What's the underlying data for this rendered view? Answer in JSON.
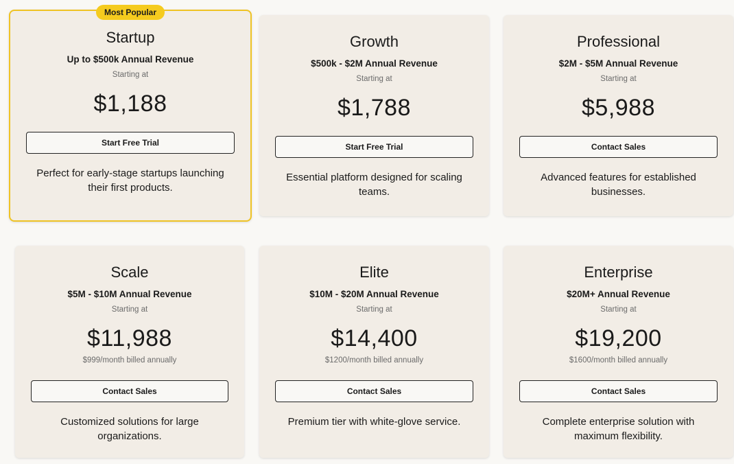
{
  "plans": [
    {
      "badge": "Most Popular",
      "name": "Startup",
      "revenue": "Up to $500k Annual Revenue",
      "starting": "Starting at",
      "price": "$1,188",
      "button": "Start Free Trial",
      "description": [
        "Perfect for early-stage startups launching",
        "their first products."
      ]
    },
    {
      "name": "Growth",
      "revenue": "$500k - $2M Annual Revenue",
      "starting": "Starting at",
      "price": "$1,788",
      "button": "Start Free Trial",
      "description": [
        "Essential platform designed for scaling",
        "teams."
      ]
    },
    {
      "name": "Professional",
      "revenue": "$2M - $5M Annual Revenue",
      "starting": "Starting at",
      "price": "$5,988",
      "button": "Contact Sales",
      "description": [
        "Advanced features for established",
        "businesses."
      ]
    },
    {
      "name": "Scale",
      "revenue": "$5M - $10M Annual Revenue",
      "starting": "Starting at",
      "price": "$11,988",
      "monthly": "$999/month billed annually",
      "button": "Contact Sales",
      "description": [
        "Customized solutions for large",
        "organizations."
      ]
    },
    {
      "name": "Elite",
      "revenue": "$10M - $20M Annual Revenue",
      "starting": "Starting at",
      "price": "$14,400",
      "monthly": "$1200/month billed annually",
      "button": "Contact Sales",
      "description": [
        "Premium tier with white-glove service."
      ]
    },
    {
      "name": "Enterprise",
      "revenue": "$20M+ Annual Revenue",
      "starting": "Starting at",
      "price": "$19,200",
      "monthly": "$1600/month billed annually",
      "button": "Contact Sales",
      "description": [
        "Complete enterprise solution with",
        "maximum flexibility."
      ]
    }
  ]
}
